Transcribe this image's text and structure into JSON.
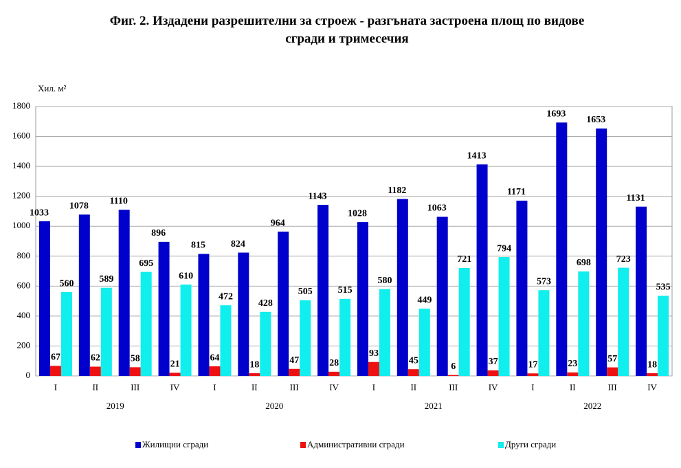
{
  "chart_data": {
    "type": "bar",
    "title": "Фиг. 2. Издадени разрешителни за строеж - разгъната застроена площ по видове сгради и тримесечия",
    "y_label": "Хил. м²",
    "categories": [
      "I",
      "II",
      "III",
      "IV",
      "I",
      "II",
      "III",
      "IV",
      "I",
      "II",
      "III",
      "IV",
      "I",
      "II",
      "III",
      "IV"
    ],
    "groups": [
      "2019",
      "2020",
      "2021",
      "2022"
    ],
    "series": [
      {
        "name": "Жилищни сгради",
        "color": "#0000cc",
        "values": [
          1033,
          1078,
          1110,
          896,
          815,
          824,
          964,
          1143,
          1028,
          1182,
          1063,
          1413,
          1171,
          1693,
          1653,
          1131
        ]
      },
      {
        "name": "Административни сгради",
        "color": "#ee1111",
        "values": [
          67,
          62,
          58,
          21,
          64,
          18,
          47,
          28,
          93,
          45,
          6,
          37,
          17,
          23,
          57,
          18
        ]
      },
      {
        "name": "Други сгради",
        "color": "#11eeee",
        "values": [
          560,
          589,
          695,
          610,
          472,
          428,
          505,
          515,
          580,
          449,
          721,
          794,
          573,
          698,
          723,
          535
        ]
      }
    ],
    "ylim": [
      0,
      1800
    ],
    "yticks": [
      0,
      200,
      400,
      600,
      800,
      1000,
      1200,
      1400,
      1600,
      1800
    ],
    "grid": true,
    "legend": "bottom"
  }
}
